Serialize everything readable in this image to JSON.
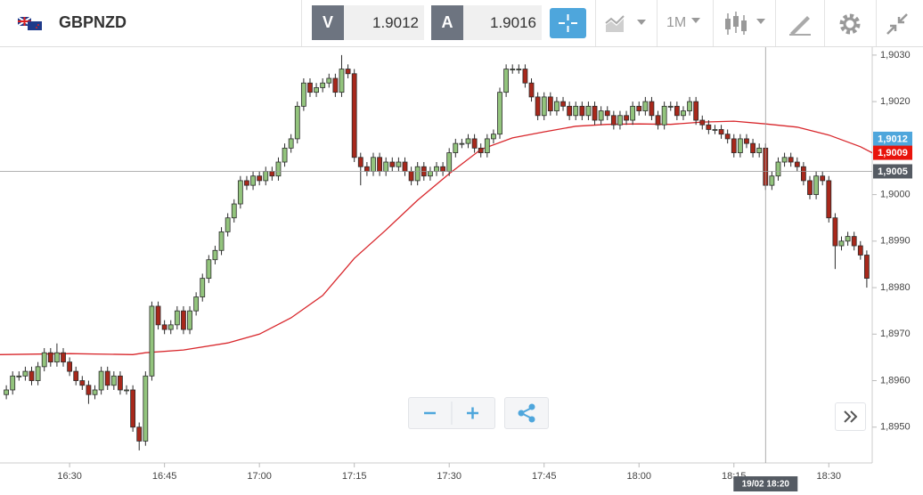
{
  "toolbar": {
    "symbol": "GBPNZD",
    "bid_label": "V",
    "bid": "1.9012",
    "ask_label": "A",
    "ask": "1.9016",
    "timeframe": "1M"
  },
  "chart_data": {
    "type": "candlestick",
    "x": [
      "16:20",
      "16:21",
      "16:22",
      "16:23",
      "16:24",
      "16:25",
      "16:26",
      "16:27",
      "16:28",
      "16:29",
      "16:30",
      "16:31",
      "16:32",
      "16:33",
      "16:34",
      "16:35",
      "16:36",
      "16:37",
      "16:38",
      "16:39",
      "16:40",
      "16:41",
      "16:42",
      "16:43",
      "16:44",
      "16:45",
      "16:46",
      "16:47",
      "16:48",
      "16:49",
      "16:50",
      "16:51",
      "16:52",
      "16:53",
      "16:54",
      "16:55",
      "16:56",
      "16:57",
      "16:58",
      "16:59",
      "17:00",
      "17:01",
      "17:02",
      "17:03",
      "17:04",
      "17:05",
      "17:06",
      "17:07",
      "17:08",
      "17:09",
      "17:10",
      "17:11",
      "17:12",
      "17:13",
      "17:14",
      "17:15",
      "17:16",
      "17:17",
      "17:18",
      "17:19",
      "17:20",
      "17:21",
      "17:22",
      "17:23",
      "17:24",
      "17:25",
      "17:26",
      "17:27",
      "17:28",
      "17:29",
      "17:30",
      "17:31",
      "17:32",
      "17:33",
      "17:34",
      "17:35",
      "17:36",
      "17:37",
      "17:38",
      "17:39",
      "17:40",
      "17:41",
      "17:42",
      "17:43",
      "17:44",
      "17:45",
      "17:46",
      "17:47",
      "17:48",
      "17:49",
      "17:50",
      "17:51",
      "17:52",
      "17:53",
      "17:54",
      "17:55",
      "17:56",
      "17:57",
      "17:58",
      "17:59",
      "18:00",
      "18:01",
      "18:02",
      "18:03",
      "18:04",
      "18:05",
      "18:06",
      "18:07",
      "18:08",
      "18:09",
      "18:10",
      "18:11",
      "18:12",
      "18:13",
      "18:14",
      "18:15",
      "18:16",
      "18:17",
      "18:18",
      "18:19",
      "18:20",
      "18:21",
      "18:22",
      "18:23",
      "18:24",
      "18:25",
      "18:26",
      "18:27",
      "18:28",
      "18:29",
      "18:30",
      "18:31",
      "18:32",
      "18:33",
      "18:34",
      "18:35",
      "18:36"
    ],
    "open": [
      1.8957,
      1.8958,
      1.8961,
      1.8961,
      1.8962,
      1.896,
      1.8963,
      1.8966,
      1.8964,
      1.8966,
      1.8964,
      1.8962,
      1.896,
      1.8959,
      1.8957,
      1.8958,
      1.8962,
      1.8959,
      1.8961,
      1.8958,
      1.8958,
      1.895,
      1.8947,
      1.8961,
      1.8976,
      1.8972,
      1.8971,
      1.8972,
      1.8975,
      1.8971,
      1.8975,
      1.8978,
      1.8982,
      1.8986,
      1.8988,
      1.8992,
      1.8995,
      1.8998,
      1.9003,
      1.9002,
      1.9004,
      1.9003,
      1.9005,
      1.9004,
      1.9007,
      1.901,
      1.9012,
      1.9019,
      1.9024,
      1.9022,
      1.9023,
      1.9024,
      1.9025,
      1.9022,
      1.9027,
      1.9026,
      1.9008,
      1.9006,
      1.9005,
      1.9008,
      1.9005,
      1.9007,
      1.9006,
      1.9007,
      1.9005,
      1.9003,
      1.9006,
      1.9004,
      1.9005,
      1.9006,
      1.9005,
      1.9009,
      1.9011,
      1.9011,
      1.9012,
      1.901,
      1.9009,
      1.9012,
      1.9013,
      1.9022,
      1.9027,
      1.9027,
      1.9027,
      1.9024,
      1.9021,
      1.9017,
      1.9021,
      1.9018,
      1.902,
      1.9019,
      1.9017,
      1.9019,
      1.9017,
      1.9019,
      1.9016,
      1.9018,
      1.9017,
      1.9015,
      1.9017,
      1.9016,
      1.9019,
      1.9018,
      1.902,
      1.9017,
      1.9015,
      1.9019,
      1.9019,
      1.9017,
      1.9018,
      1.902,
      1.9016,
      1.9015,
      1.9014,
      1.9014,
      1.9013,
      1.9012,
      1.9009,
      1.9012,
      1.9011,
      1.9009,
      1.901,
      1.9002,
      1.9004,
      1.9007,
      1.9008,
      1.9007,
      1.9006,
      1.9003,
      1.9,
      1.9004,
      1.9003,
      1.8995,
      1.8989,
      1.899,
      1.8991,
      1.8989,
      1.8987
    ],
    "high": [
      1.8959,
      1.8962,
      1.8962,
      1.8963,
      1.8963,
      1.8964,
      1.8967,
      1.8967,
      1.8968,
      1.8967,
      1.8965,
      1.8963,
      1.8961,
      1.896,
      1.8959,
      1.8963,
      1.8963,
      1.8962,
      1.8962,
      1.8959,
      1.8959,
      1.8951,
      1.8962,
      1.8977,
      1.8977,
      1.8973,
      1.8973,
      1.8976,
      1.8976,
      1.8976,
      1.8979,
      1.8983,
      1.8987,
      1.8989,
      1.8993,
      1.8996,
      1.8999,
      1.9004,
      1.9004,
      1.9005,
      1.9005,
      1.9006,
      1.9006,
      1.9008,
      1.9011,
      1.9013,
      1.902,
      1.9025,
      1.9025,
      1.9024,
      1.9025,
      1.9026,
      1.9026,
      1.903,
      1.9028,
      1.9027,
      1.9009,
      1.9007,
      1.9009,
      1.9009,
      1.9008,
      1.9008,
      1.9008,
      1.9008,
      1.9006,
      1.9007,
      1.9007,
      1.9006,
      1.9007,
      1.9007,
      1.901,
      1.9012,
      1.9012,
      1.9013,
      1.9013,
      1.9011,
      1.9013,
      1.9014,
      1.9023,
      1.9028,
      1.9028,
      1.9028,
      1.9028,
      1.9025,
      1.9022,
      1.9022,
      1.9022,
      1.9021,
      1.9021,
      1.902,
      1.902,
      1.902,
      1.902,
      1.902,
      1.9019,
      1.9019,
      1.9018,
      1.9018,
      1.9018,
      1.902,
      1.902,
      1.9021,
      1.9021,
      1.9018,
      1.902,
      1.902,
      1.902,
      1.9019,
      1.9021,
      1.9021,
      1.9017,
      1.9016,
      1.9015,
      1.9015,
      1.9014,
      1.9013,
      1.9013,
      1.9013,
      1.9012,
      1.9011,
      1.9011,
      1.9005,
      1.9008,
      1.9009,
      1.9009,
      1.9008,
      1.9007,
      1.9004,
      1.9005,
      1.9005,
      1.9004,
      1.8996,
      1.8991,
      1.8992,
      1.8992,
      1.899,
      1.8988
    ],
    "low": [
      1.8956,
      1.8957,
      1.896,
      1.896,
      1.8959,
      1.8959,
      1.8962,
      1.8963,
      1.8963,
      1.8963,
      1.8961,
      1.8959,
      1.8958,
      1.8955,
      1.8956,
      1.8957,
      1.8958,
      1.8958,
      1.8957,
      1.8957,
      1.8949,
      1.8945,
      1.8946,
      1.896,
      1.8971,
      1.897,
      1.897,
      1.8971,
      1.897,
      1.897,
      1.8974,
      1.8977,
      1.8981,
      1.8985,
      1.8987,
      1.8991,
      1.8994,
      1.8997,
      1.9001,
      1.9001,
      1.9002,
      1.9002,
      1.9003,
      1.9003,
      1.9006,
      1.9009,
      1.9011,
      1.9018,
      1.9021,
      1.9021,
      1.9022,
      1.9023,
      1.9021,
      1.9021,
      1.9025,
      1.9007,
      1.9002,
      1.9004,
      1.9004,
      1.9004,
      1.9004,
      1.9005,
      1.9005,
      1.9004,
      1.9002,
      1.9002,
      1.9003,
      1.9003,
      1.9004,
      1.9004,
      1.9004,
      1.9008,
      1.901,
      1.901,
      1.9009,
      1.9008,
      1.9008,
      1.9011,
      1.9012,
      1.9021,
      1.9026,
      1.9026,
      1.9023,
      1.902,
      1.9016,
      1.9016,
      1.9017,
      1.9017,
      1.9018,
      1.9016,
      1.9016,
      1.9016,
      1.9016,
      1.9015,
      1.9015,
      1.9016,
      1.9014,
      1.9014,
      1.9015,
      1.9015,
      1.9017,
      1.9017,
      1.9016,
      1.9014,
      1.9014,
      1.9018,
      1.9016,
      1.9016,
      1.9017,
      1.9015,
      1.9014,
      1.9013,
      1.9013,
      1.9012,
      1.9011,
      1.9008,
      1.9008,
      1.901,
      1.9008,
      1.9008,
      1.9001,
      1.9001,
      1.9003,
      1.9006,
      1.9006,
      1.9005,
      1.9002,
      1.8999,
      1.8999,
      1.9002,
      1.8994,
      1.8984,
      1.8988,
      1.8989,
      1.8988,
      1.8986,
      1.898
    ],
    "close": [
      1.8958,
      1.8961,
      1.8961,
      1.8962,
      1.896,
      1.8963,
      1.8966,
      1.8964,
      1.8966,
      1.8964,
      1.8962,
      1.896,
      1.8959,
      1.8957,
      1.8958,
      1.8962,
      1.8959,
      1.8961,
      1.8958,
      1.8958,
      1.895,
      1.8947,
      1.8961,
      1.8976,
      1.8972,
      1.8971,
      1.8972,
      1.8975,
      1.8971,
      1.8975,
      1.8978,
      1.8982,
      1.8986,
      1.8988,
      1.8992,
      1.8995,
      1.8998,
      1.9003,
      1.9002,
      1.9004,
      1.9003,
      1.9005,
      1.9004,
      1.9007,
      1.901,
      1.9012,
      1.9019,
      1.9024,
      1.9022,
      1.9023,
      1.9024,
      1.9025,
      1.9022,
      1.9027,
      1.9026,
      1.9008,
      1.9006,
      1.9005,
      1.9008,
      1.9005,
      1.9007,
      1.9006,
      1.9007,
      1.9005,
      1.9003,
      1.9006,
      1.9004,
      1.9005,
      1.9006,
      1.9005,
      1.9009,
      1.9011,
      1.9011,
      1.9012,
      1.901,
      1.9009,
      1.9012,
      1.9013,
      1.9022,
      1.9027,
      1.9027,
      1.9027,
      1.9024,
      1.9021,
      1.9017,
      1.9021,
      1.9018,
      1.902,
      1.9019,
      1.9017,
      1.9019,
      1.9017,
      1.9019,
      1.9016,
      1.9018,
      1.9017,
      1.9015,
      1.9017,
      1.9016,
      1.9019,
      1.9018,
      1.902,
      1.9017,
      1.9015,
      1.9019,
      1.9019,
      1.9017,
      1.9018,
      1.902,
      1.9016,
      1.9015,
      1.9014,
      1.9014,
      1.9013,
      1.9012,
      1.9009,
      1.9012,
      1.9011,
      1.9009,
      1.901,
      1.9002,
      1.9004,
      1.9007,
      1.9008,
      1.9007,
      1.9006,
      1.9003,
      1.9,
      1.9004,
      1.9003,
      1.8995,
      1.8989,
      1.899,
      1.8991,
      1.8989,
      1.8987,
      1.8982
    ],
    "colors": {
      "up": "#93c47d",
      "down": "#a8281b",
      "outline": "#2b2b2b"
    },
    "ma": {
      "color": "#d8262b",
      "x": [
        "16:19",
        "16:30",
        "16:40",
        "16:42",
        "16:48",
        "16:55",
        "17:00",
        "17:05",
        "17:10",
        "17:15",
        "17:20",
        "17:25",
        "17:30",
        "17:35",
        "17:40",
        "17:45",
        "17:50",
        "17:55",
        "18:00",
        "18:05",
        "18:10",
        "18:15",
        "18:20",
        "18:25",
        "18:30",
        "18:35",
        "18:37"
      ],
      "values": [
        1.89656,
        1.89658,
        1.89656,
        1.8966,
        1.89666,
        1.89681,
        1.897,
        1.89735,
        1.89783,
        1.89863,
        1.89924,
        1.89988,
        1.90045,
        1.90097,
        1.90122,
        1.90135,
        1.90147,
        1.90151,
        1.90152,
        1.90151,
        1.90156,
        1.90158,
        1.90152,
        1.90145,
        1.90128,
        1.90103,
        1.90089
      ]
    },
    "xlim": [
      "16:19",
      "18:37"
    ],
    "xticks": [
      "16:30",
      "16:45",
      "17:00",
      "17:15",
      "17:30",
      "17:45",
      "18:00",
      "18:15",
      "18:30"
    ],
    "ylim": [
      1.89423,
      1.90317
    ],
    "yticks": [
      {
        "value": 1.903,
        "label": "1,9030"
      },
      {
        "value": 1.902,
        "label": "1,9020"
      },
      {
        "value": 1.9,
        "label": "1,9000"
      },
      {
        "value": 1.899,
        "label": "1,8990"
      },
      {
        "value": 1.898,
        "label": "1,8980"
      },
      {
        "value": 1.897,
        "label": "1,8970"
      },
      {
        "value": 1.896,
        "label": "1,8960"
      },
      {
        "value": 1.895,
        "label": "1,8950"
      }
    ],
    "price_markers": [
      {
        "value": 1.9012,
        "label": "1,9012",
        "color": "#4ea6dc"
      },
      {
        "value": 1.9009,
        "label": "1,9009",
        "color": "#e8140c"
      }
    ],
    "crosshair": {
      "x": "18:20",
      "label": "19/02 18:20",
      "y": {
        "value": 1.9005,
        "label": "1,9005"
      },
      "color": "#555b63"
    },
    "grid": false
  }
}
